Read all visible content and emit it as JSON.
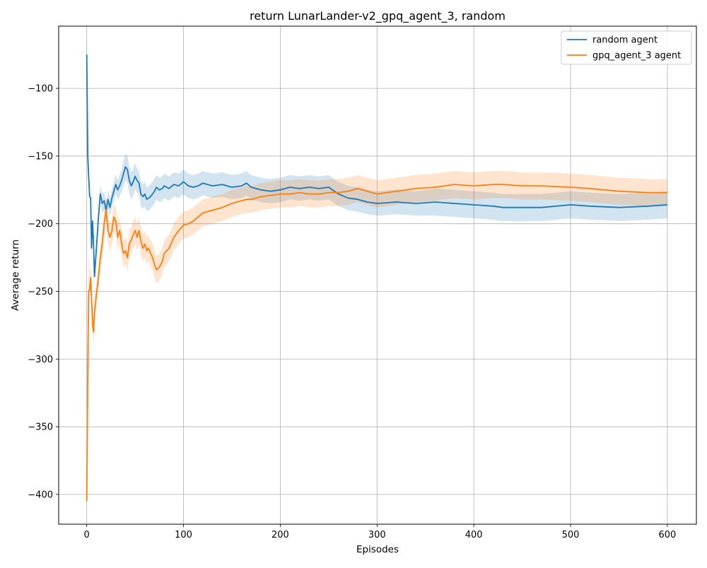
{
  "chart_data": {
    "type": "line",
    "title": "return LunarLander-v2_gpq_agent_3, random",
    "xlabel": "Episodes",
    "ylabel": "Average return",
    "xlim": [
      -29,
      630
    ],
    "ylim": [
      -422,
      -54
    ],
    "xticks": [
      0,
      100,
      200,
      300,
      400,
      500,
      600
    ],
    "yticks": [
      -400,
      -350,
      -300,
      -250,
      -200,
      -150,
      -100
    ],
    "ytick_labels": [
      "−400",
      "−350",
      "−300",
      "−250",
      "−200",
      "−150",
      "−100"
    ],
    "grid": true,
    "legend_position": "upper right",
    "series": [
      {
        "name": "random agent",
        "color": "#1f77b4",
        "x": [
          0,
          1,
          2,
          3,
          4,
          5,
          6,
          7,
          8,
          10,
          12,
          14,
          16,
          18,
          20,
          22,
          24,
          26,
          28,
          30,
          32,
          34,
          36,
          38,
          40,
          42,
          44,
          46,
          48,
          50,
          52,
          54,
          56,
          58,
          60,
          62,
          64,
          66,
          68,
          70,
          72,
          75,
          78,
          80,
          85,
          90,
          95,
          100,
          105,
          110,
          115,
          120,
          130,
          140,
          150,
          160,
          165,
          170,
          180,
          190,
          200,
          210,
          220,
          230,
          240,
          250,
          260,
          270,
          280,
          290,
          300,
          320,
          340,
          360,
          380,
          400,
          420,
          430,
          450,
          470,
          500,
          520,
          550,
          580,
          600
        ],
        "y": [
          -75,
          -150,
          -165,
          -180,
          -181,
          -218,
          -198,
          -215,
          -239,
          -218,
          -196,
          -178,
          -185,
          -183,
          -190,
          -182,
          -188,
          -181,
          -176,
          -171,
          -175,
          -172,
          -168,
          -163,
          -158,
          -160,
          -168,
          -172,
          -169,
          -165,
          -168,
          -170,
          -178,
          -180,
          -178,
          -182,
          -181,
          -180,
          -178,
          -176,
          -173,
          -175,
          -174,
          -172,
          -174,
          -171,
          -172,
          -169,
          -172,
          -173,
          -172,
          -170,
          -172,
          -171,
          -173,
          -172,
          -170,
          -173,
          -175,
          -176,
          -175,
          -173,
          -174,
          -173,
          -174,
          -173,
          -178,
          -181,
          -182,
          -184,
          -185,
          -184,
          -185,
          -184,
          -185,
          -186,
          -187,
          -188,
          -188,
          -188,
          -186,
          -187,
          -188,
          -187,
          -186
        ],
        "band": [
          0,
          1,
          1,
          2,
          4,
          6,
          6,
          6,
          7,
          7,
          7,
          7,
          7,
          7,
          7,
          7,
          7,
          7,
          7,
          7,
          7,
          8,
          8,
          9,
          10,
          10,
          10,
          10,
          10,
          10,
          9,
          9,
          9,
          9,
          9,
          9,
          9,
          9,
          9,
          9,
          9,
          9,
          9,
          9,
          9,
          9,
          9,
          9,
          9,
          9,
          9,
          9,
          9,
          9,
          9,
          9,
          9,
          9,
          9,
          9,
          9,
          9,
          9,
          9,
          9,
          9,
          9,
          9,
          9,
          9,
          9,
          9,
          9,
          10,
          10,
          10,
          10,
          10,
          10,
          10,
          10,
          10,
          10,
          10,
          10
        ]
      },
      {
        "name": "gpq_agent_3 agent",
        "color": "#ff7f0e",
        "x": [
          0,
          1,
          2,
          3,
          4,
          5,
          6,
          7,
          8,
          10,
          12,
          14,
          16,
          18,
          20,
          22,
          24,
          26,
          28,
          30,
          32,
          34,
          36,
          38,
          40,
          42,
          44,
          46,
          48,
          50,
          52,
          54,
          56,
          58,
          60,
          62,
          64,
          66,
          68,
          70,
          72,
          75,
          78,
          80,
          85,
          90,
          95,
          100,
          105,
          110,
          115,
          120,
          130,
          140,
          150,
          160,
          165,
          170,
          180,
          190,
          200,
          210,
          220,
          230,
          240,
          250,
          260,
          270,
          280,
          290,
          300,
          320,
          340,
          360,
          380,
          400,
          420,
          430,
          450,
          470,
          500,
          520,
          550,
          580,
          600
        ],
        "y": [
          -405,
          -310,
          -250,
          -248,
          -240,
          -255,
          -275,
          -280,
          -265,
          -252,
          -240,
          -225,
          -215,
          -200,
          -190,
          -205,
          -210,
          -205,
          -195,
          -198,
          -210,
          -205,
          -215,
          -222,
          -220,
          -225,
          -215,
          -212,
          -208,
          -205,
          -210,
          -205,
          -213,
          -218,
          -215,
          -220,
          -218,
          -222,
          -225,
          -230,
          -234,
          -232,
          -228,
          -222,
          -218,
          -210,
          -205,
          -201,
          -200,
          -198,
          -195,
          -192,
          -190,
          -188,
          -185,
          -183,
          -182,
          -182,
          -180,
          -179,
          -178,
          -178,
          -177,
          -178,
          -178,
          -177,
          -177,
          -176,
          -174,
          -176,
          -178,
          -176,
          -174,
          -173,
          -171,
          -172,
          -171,
          -171,
          -172,
          -172,
          -173,
          -174,
          -176,
          -177,
          -177
        ],
        "band": [
          0,
          40,
          30,
          10,
          10,
          10,
          10,
          10,
          10,
          10,
          10,
          10,
          10,
          10,
          10,
          10,
          10,
          10,
          10,
          10,
          10,
          10,
          10,
          10,
          10,
          10,
          10,
          10,
          10,
          10,
          10,
          10,
          10,
          10,
          10,
          10,
          10,
          10,
          10,
          10,
          10,
          10,
          10,
          10,
          10,
          10,
          10,
          10,
          10,
          10,
          10,
          10,
          10,
          10,
          10,
          10,
          10,
          10,
          10,
          10,
          10,
          10,
          10,
          10,
          10,
          10,
          10,
          10,
          10,
          10,
          10,
          10,
          10,
          10,
          10,
          10,
          10,
          10,
          10,
          10,
          10,
          10,
          10,
          10,
          10
        ]
      }
    ]
  }
}
